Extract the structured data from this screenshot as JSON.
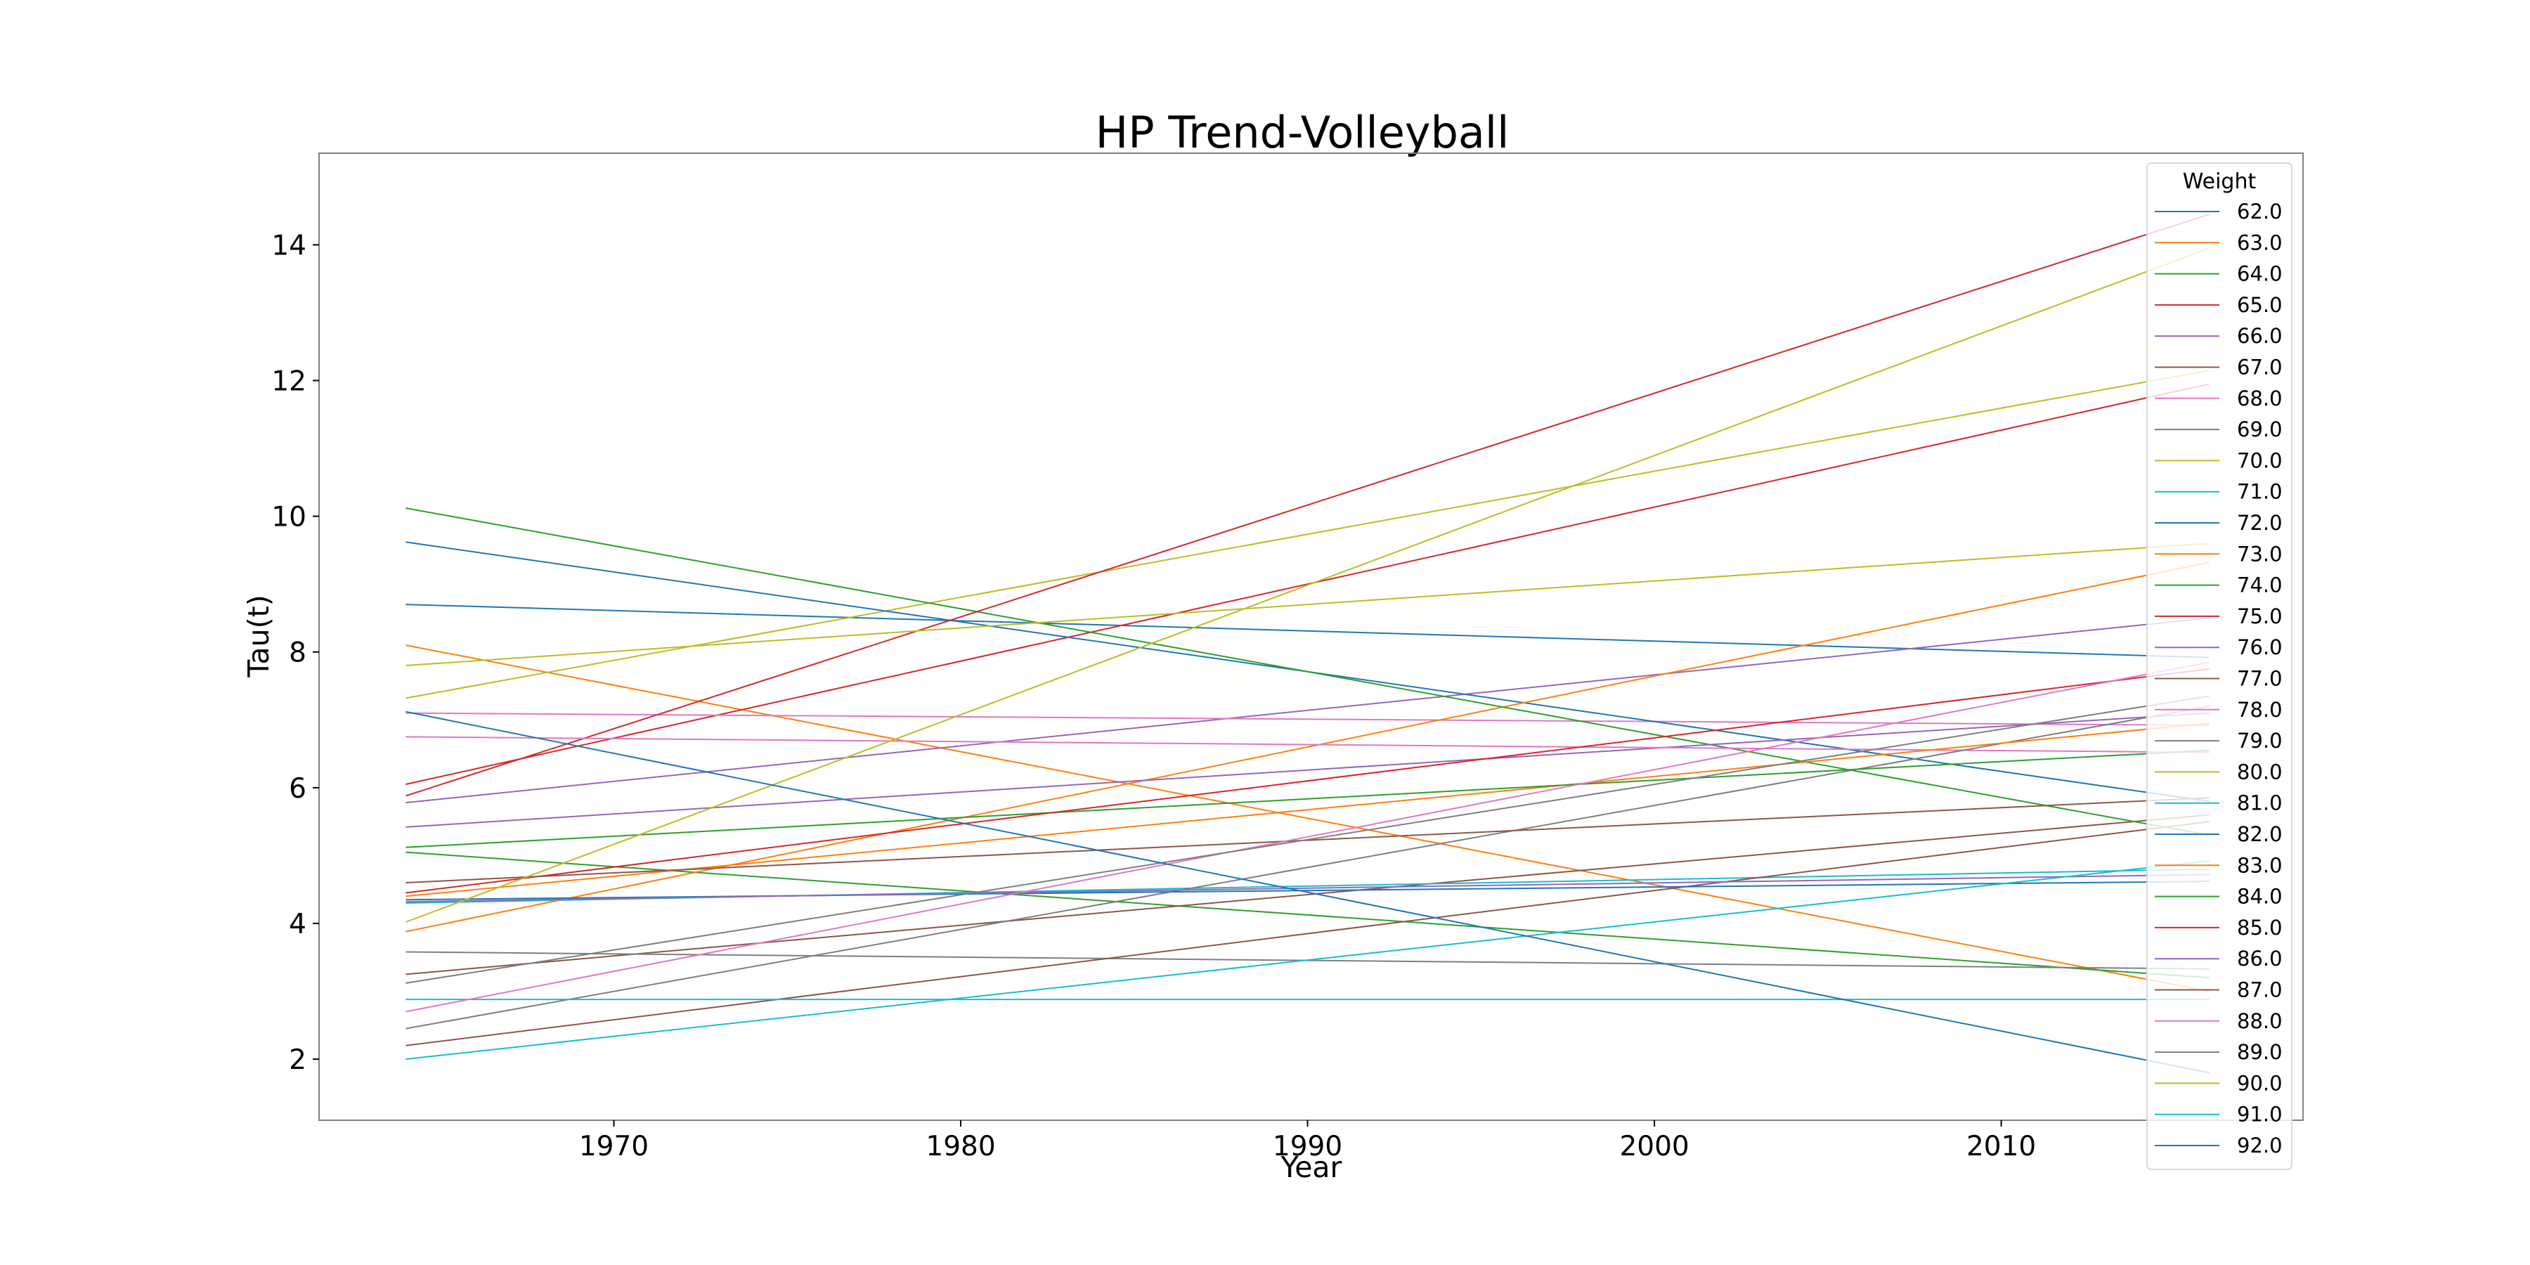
{
  "chart_data": {
    "type": "line",
    "title": "HP Trend-Volleyball",
    "xlabel": "Year",
    "ylabel": "Tau(t)",
    "xlim": [
      1961.5,
      2018.7
    ],
    "ylim": [
      1.1,
      15.35
    ],
    "xticks": [
      1970,
      1980,
      1990,
      2000,
      2010
    ],
    "yticks": [
      2,
      4,
      6,
      8,
      10,
      12,
      14
    ],
    "grid": false,
    "legend": {
      "title": "Weight",
      "placement": "right"
    },
    "x": [
      1964,
      2016
    ],
    "series": [
      {
        "name": "62.0",
        "color": "#1f77b4",
        "values": [
          8.7,
          7.92
        ]
      },
      {
        "name": "63.0",
        "color": "#ff7f0e",
        "values": [
          8.1,
          3.0
        ]
      },
      {
        "name": "64.0",
        "color": "#2ca02c",
        "values": [
          5.05,
          3.2
        ]
      },
      {
        "name": "65.0",
        "color": "#d62728",
        "values": [
          6.05,
          11.95
        ]
      },
      {
        "name": "66.0",
        "color": "#9467bd",
        "values": [
          5.78,
          8.5
        ]
      },
      {
        "name": "67.0",
        "color": "#8c564b",
        "values": [
          3.25,
          5.6
        ]
      },
      {
        "name": "68.0",
        "color": "#e377c2",
        "values": [
          7.1,
          6.92
        ]
      },
      {
        "name": "69.0",
        "color": "#7f7f7f",
        "values": [
          3.58,
          3.33
        ]
      },
      {
        "name": "70.0",
        "color": "#bcbd22",
        "values": [
          7.32,
          12.15
        ]
      },
      {
        "name": "71.0",
        "color": "#17becf",
        "values": [
          4.3,
          4.8
        ]
      },
      {
        "name": "72.0",
        "color": "#1f77b4",
        "values": [
          9.62,
          5.8
        ]
      },
      {
        "name": "73.0",
        "color": "#ff7f0e",
        "values": [
          3.88,
          9.32
        ]
      },
      {
        "name": "74.0",
        "color": "#2ca02c",
        "values": [
          10.12,
          5.3
        ]
      },
      {
        "name": "75.0",
        "color": "#d62728",
        "values": [
          5.88,
          14.45
        ]
      },
      {
        "name": "76.0",
        "color": "#9467bd",
        "values": [
          5.42,
          7.1
        ]
      },
      {
        "name": "77.0",
        "color": "#8c564b",
        "values": [
          2.2,
          5.5
        ]
      },
      {
        "name": "78.0",
        "color": "#e377c2",
        "values": [
          6.75,
          6.52
        ]
      },
      {
        "name": "79.0",
        "color": "#7f7f7f",
        "values": [
          2.45,
          7.2
        ]
      },
      {
        "name": "80.0",
        "color": "#bcbd22",
        "values": [
          7.8,
          9.6
        ]
      },
      {
        "name": "81.0",
        "color": "#17becf",
        "values": [
          2.88,
          2.88
        ]
      },
      {
        "name": "82.0",
        "color": "#1f77b4",
        "values": [
          4.35,
          4.62
        ]
      },
      {
        "name": "83.0",
        "color": "#ff7f0e",
        "values": [
          4.4,
          6.95
        ]
      },
      {
        "name": "84.0",
        "color": "#2ca02c",
        "values": [
          5.12,
          6.55
        ]
      },
      {
        "name": "85.0",
        "color": "#d62728",
        "values": [
          4.45,
          7.75
        ]
      },
      {
        "name": "86.0",
        "color": "#9467bd",
        "values": [
          4.32,
          4.72
        ]
      },
      {
        "name": "87.0",
        "color": "#8c564b",
        "values": [
          4.6,
          5.85
        ]
      },
      {
        "name": "88.0",
        "color": "#e377c2",
        "values": [
          2.7,
          7.85
        ]
      },
      {
        "name": "89.0",
        "color": "#7f7f7f",
        "values": [
          3.12,
          7.35
        ]
      },
      {
        "name": "90.0",
        "color": "#bcbd22",
        "values": [
          4.02,
          13.95
        ]
      },
      {
        "name": "91.0",
        "color": "#17becf",
        "values": [
          2.0,
          4.92
        ]
      },
      {
        "name": "92.0",
        "color": "#1f77b4",
        "values": [
          7.12,
          1.8
        ]
      }
    ]
  }
}
